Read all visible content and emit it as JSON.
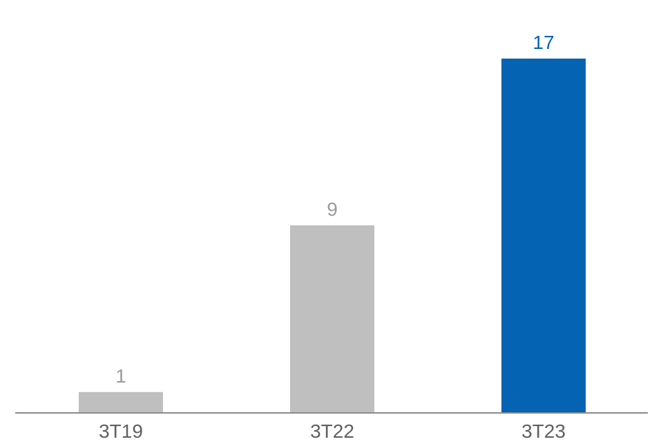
{
  "chart_data": {
    "type": "bar",
    "categories": [
      "3T19",
      "3T22",
      "3T23"
    ],
    "values": [
      1,
      9,
      17
    ],
    "data_labels": [
      "1",
      "9",
      "17"
    ],
    "title": "",
    "xlabel": "",
    "ylabel": "",
    "ylim": [
      0,
      18
    ],
    "grid": false,
    "legend": "none",
    "colors": {
      "bars": [
        "#bfbfbf",
        "#bfbfbf",
        "#0563b3"
      ],
      "labels": [
        "#9b9b9b",
        "#9b9b9b",
        "#0563b3"
      ],
      "tick_labels": "#5f5f5f",
      "axis": "#8a8a8a"
    }
  }
}
